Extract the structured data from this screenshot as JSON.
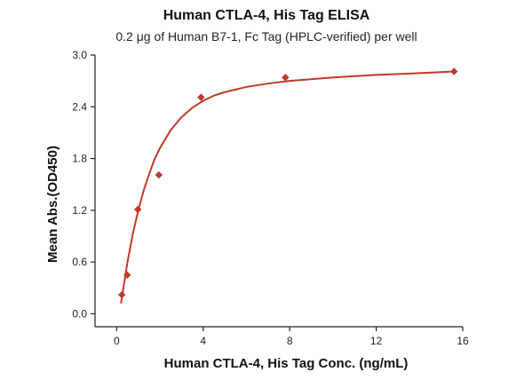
{
  "chart_data": {
    "type": "scatter",
    "title": "Human CTLA-4, His Tag ELISA",
    "subtitle": "0.2 μg of Human B7-1, Fc Tag (HPLC-verified) per well",
    "xlabel": "Human CTLA-4, His Tag Conc. (ng/mL)",
    "ylabel": "Mean Abs.(OD450)",
    "xlim": [
      -1,
      16
    ],
    "ylim": [
      -0.15,
      3.0
    ],
    "xticks": [
      "0",
      "4",
      "8",
      "12",
      "16"
    ],
    "yticks": [
      "0.0",
      "0.6",
      "1.2",
      "1.8",
      "2.4",
      "3.0"
    ],
    "grid": false,
    "legend": "none",
    "colors": {
      "series": "#c0392b",
      "axis": "#222222"
    },
    "series": [
      {
        "marker": "diamond",
        "x": [
          0.24,
          0.49,
          0.98,
          1.95,
          3.9,
          7.8,
          15.6
        ],
        "y": [
          0.22,
          0.45,
          1.21,
          1.61,
          2.51,
          2.74,
          2.81
        ]
      }
    ],
    "fit_curve": {
      "type": "line",
      "x": [
        0.2,
        0.3,
        0.5,
        0.75,
        1.0,
        1.25,
        1.5,
        1.75,
        2.0,
        2.5,
        3.0,
        3.5,
        4.0,
        4.5,
        5.0,
        6.0,
        7.0,
        8.0,
        10.0,
        12.0,
        14.0,
        15.6
      ],
      "y": [
        0.12,
        0.28,
        0.6,
        0.93,
        1.2,
        1.43,
        1.62,
        1.79,
        1.92,
        2.13,
        2.28,
        2.39,
        2.47,
        2.53,
        2.57,
        2.63,
        2.67,
        2.7,
        2.74,
        2.77,
        2.79,
        2.81
      ]
    }
  }
}
